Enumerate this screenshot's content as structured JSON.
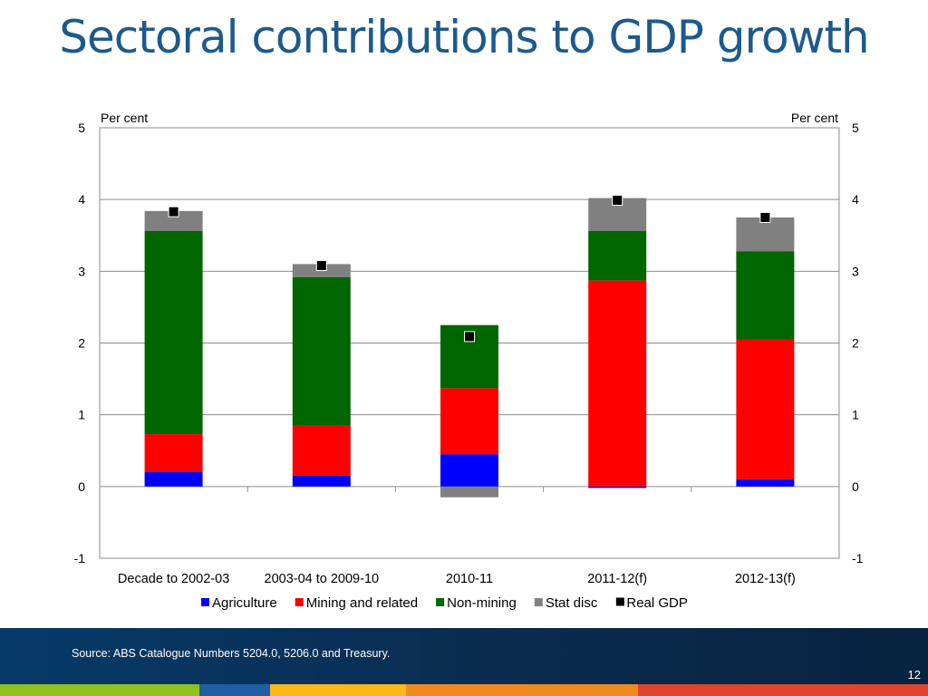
{
  "slide": {
    "title": "Sectoral contributions to GDP growth",
    "source": "Source: ABS Catalogue Numbers 5204.0, 5206.0 and Treasury.",
    "page_number": "12"
  },
  "colors": {
    "title": "#1c5a8c",
    "footer": "#0b2b4f",
    "stripes": [
      "#8dc21f",
      "#1f5fa6",
      "#fbb816",
      "#f08a1c",
      "#e0452b"
    ]
  },
  "chart_data": {
    "type": "bar",
    "stacked": true,
    "categories": [
      "Decade to 2002-03",
      "2003-04 to 2009-10",
      "2010-11",
      "2011-12(f)",
      "2012-13(f)"
    ],
    "series": [
      {
        "name": "Agriculture",
        "color": "#0000ff",
        "values": [
          0.2,
          0.15,
          0.45,
          -0.02,
          0.1
        ]
      },
      {
        "name": "Mining and related",
        "color": "#ff0000",
        "values": [
          0.53,
          0.7,
          0.92,
          2.87,
          1.95
        ]
      },
      {
        "name": "Non-mining",
        "color": "#006600",
        "values": [
          2.83,
          2.07,
          0.88,
          0.69,
          1.23
        ]
      },
      {
        "name": "Stat disc",
        "color": "#808080",
        "values": [
          0.28,
          0.18,
          -0.15,
          0.46,
          0.47
        ]
      }
    ],
    "markers": {
      "name": "Real GDP",
      "color": "#000000",
      "values": [
        3.83,
        3.08,
        2.09,
        3.99,
        3.75
      ]
    },
    "ylim": [
      -1,
      5
    ],
    "yticks": [
      -1,
      0,
      1,
      2,
      3,
      4,
      5
    ],
    "ylabel_left": "Per cent",
    "ylabel_right": "Per cent",
    "grid": true,
    "legend_position": "bottom"
  }
}
